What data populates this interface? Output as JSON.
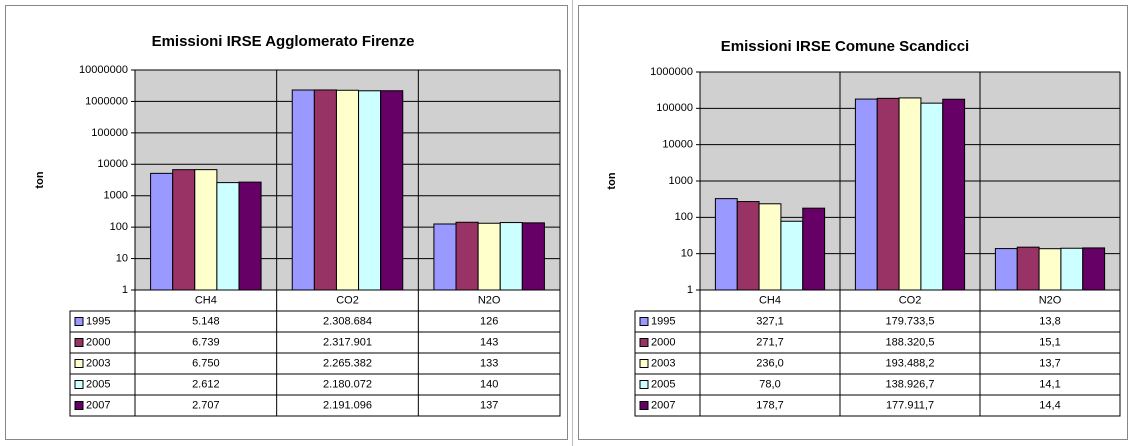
{
  "chart_data": [
    {
      "type": "bar",
      "title": "Emissioni IRSE Agglomerato Firenze",
      "y_label": "ton",
      "log_scale": true,
      "grid": true,
      "legend": "table",
      "categories": [
        "CH4",
        "CO2",
        "N2O"
      ],
      "ylim": [
        1,
        10000000
      ],
      "yticks": [
        1,
        10,
        100,
        1000,
        10000,
        100000,
        1000000,
        10000000
      ],
      "series": [
        {
          "name": "1995",
          "color": "#9999ff",
          "values": [
            5148,
            2308684,
            126
          ],
          "value_labels": [
            "5.148",
            "2.308.684",
            "126"
          ]
        },
        {
          "name": "2000",
          "color": "#993366",
          "values": [
            6739,
            2317901,
            143
          ],
          "value_labels": [
            "6.739",
            "2.317.901",
            "143"
          ]
        },
        {
          "name": "2003",
          "color": "#ffffcc",
          "values": [
            6750,
            2265382,
            133
          ],
          "value_labels": [
            "6.750",
            "2.265.382",
            "133"
          ]
        },
        {
          "name": "2005",
          "color": "#ccffff",
          "values": [
            2612,
            2180072,
            140
          ],
          "value_labels": [
            "2.612",
            "2.180.072",
            "140"
          ]
        },
        {
          "name": "2007",
          "color": "#660066",
          "values": [
            2707,
            2191096,
            137
          ],
          "value_labels": [
            "2.707",
            "2.191.096",
            "137"
          ]
        }
      ]
    },
    {
      "type": "bar",
      "title": "Emissioni IRSE Comune Scandicci",
      "y_label": "ton",
      "log_scale": true,
      "grid": true,
      "legend": "table",
      "categories": [
        "CH4",
        "CO2",
        "N2O"
      ],
      "ylim": [
        1,
        1000000
      ],
      "yticks": [
        1,
        10,
        100,
        1000,
        10000,
        100000,
        1000000
      ],
      "series": [
        {
          "name": "1995",
          "color": "#9999ff",
          "values": [
            327.1,
            179733.5,
            13.8
          ],
          "value_labels": [
            "327,1",
            "179.733,5",
            "13,8"
          ]
        },
        {
          "name": "2000",
          "color": "#993366",
          "values": [
            271.7,
            188320.5,
            15.1
          ],
          "value_labels": [
            "271,7",
            "188.320,5",
            "15,1"
          ]
        },
        {
          "name": "2003",
          "color": "#ffffcc",
          "values": [
            236.0,
            193488.2,
            13.7
          ],
          "value_labels": [
            "236,0",
            "193.488,2",
            "13,7"
          ]
        },
        {
          "name": "2005",
          "color": "#ccffff",
          "values": [
            78.0,
            138926.7,
            14.1
          ],
          "value_labels": [
            "78,0",
            "138.926,7",
            "14,1"
          ]
        },
        {
          "name": "2007",
          "color": "#660066",
          "values": [
            178.7,
            177911.7,
            14.4
          ],
          "value_labels": [
            "178,7",
            "177.911,7",
            "14,4"
          ]
        }
      ]
    }
  ]
}
